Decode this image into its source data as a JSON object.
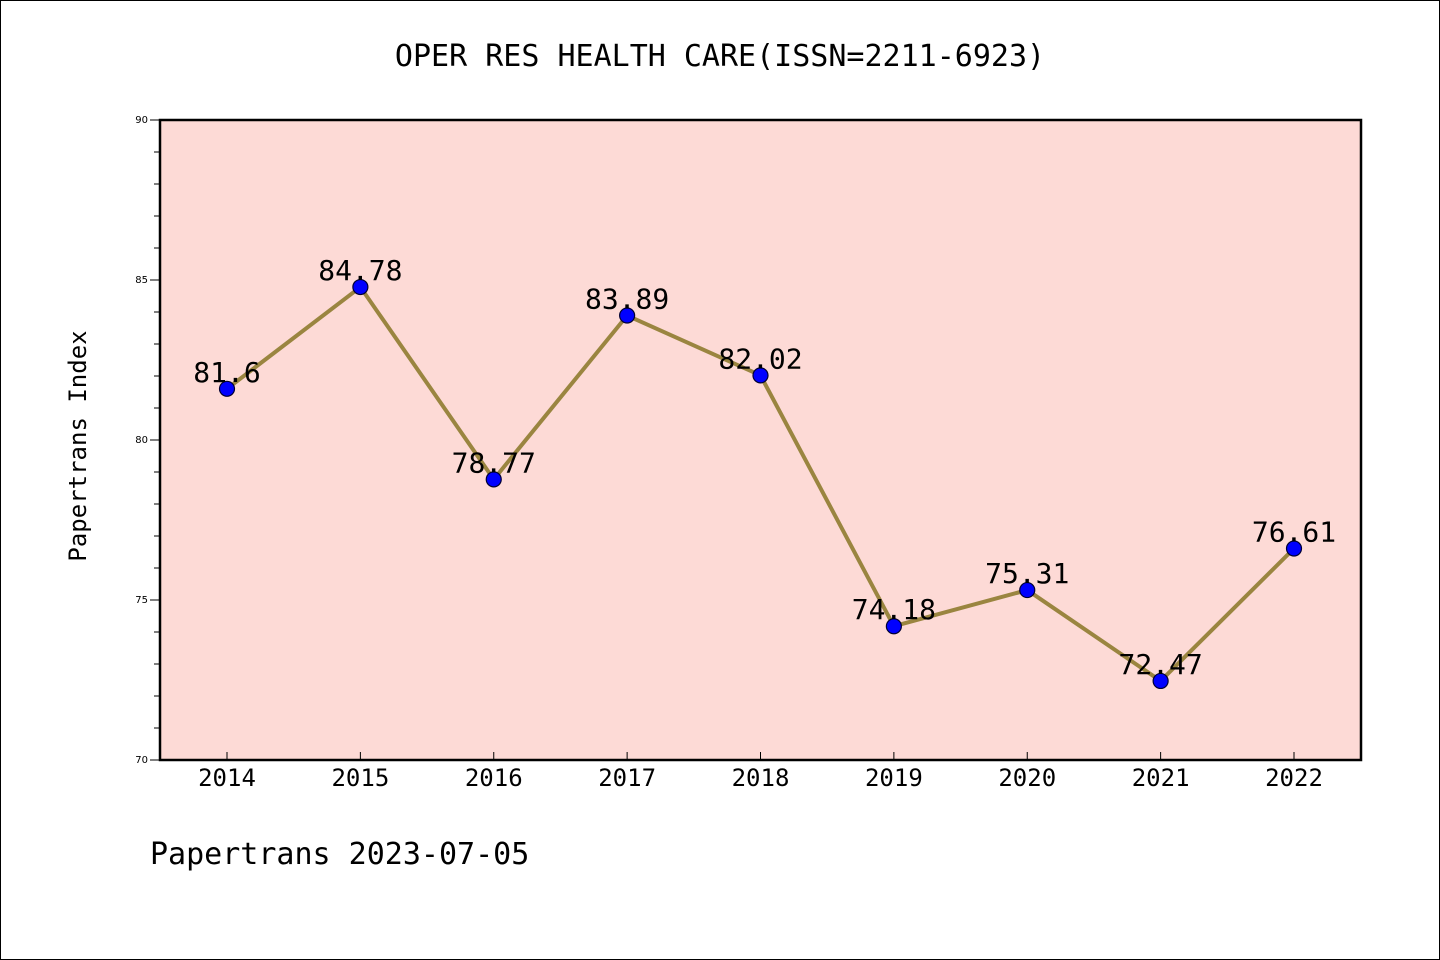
{
  "chart_data": {
    "type": "line",
    "title": "OPER RES HEALTH CARE(ISSN=2211-6923)",
    "ylabel": "Papertrans Index",
    "xlabel": "",
    "footer": "Papertrans 2023-07-05",
    "categories": [
      "2014",
      "2015",
      "2016",
      "2017",
      "2018",
      "2019",
      "2020",
      "2021",
      "2022"
    ],
    "series": [
      {
        "values": [
          81.6,
          84.78,
          78.77,
          83.89,
          82.02,
          74.18,
          75.31,
          72.47,
          76.61
        ],
        "labels": [
          "81.6",
          "84.78",
          "78.77",
          "83.89",
          "82.02",
          "74.18",
          "75.31",
          "72.47",
          "76.61"
        ]
      }
    ],
    "ylim": [
      70,
      90
    ],
    "yticks": [
      "70",
      "75",
      "80",
      "85",
      "90"
    ],
    "grid": false,
    "legend": "none",
    "colors": {
      "plot_background": "#fddad6",
      "line": "#9a8540",
      "marker": "#0000ff",
      "marker_edge": "#000033"
    }
  }
}
